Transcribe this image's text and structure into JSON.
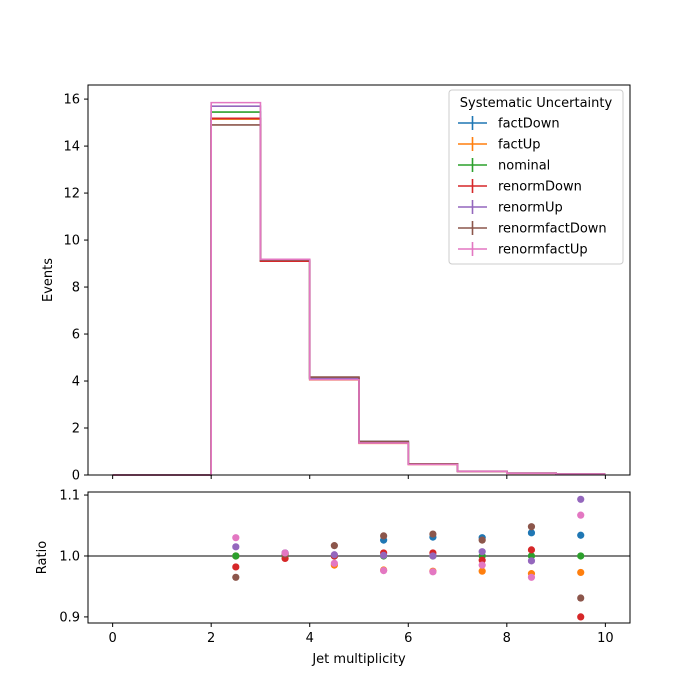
{
  "chart_data": [
    {
      "type": "step",
      "xlabel": "",
      "ylabel": "Events",
      "xlim": [
        -0.5,
        10.5
      ],
      "ylim": [
        0,
        16.6
      ],
      "xticks": [
        0,
        2,
        4,
        6,
        8,
        10
      ],
      "yticks": [
        0,
        2,
        4,
        6,
        8,
        10,
        12,
        14,
        16
      ],
      "bin_edges": [
        0,
        1,
        2,
        3,
        4,
        5,
        6,
        7,
        8,
        9,
        10
      ],
      "legend": {
        "title": "Systematic Uncertainty",
        "placement": "top-right"
      },
      "series": [
        {
          "name": "factDown",
          "color": "#1f77b4",
          "values": [
            0,
            0,
            15.15,
            9.15,
            4.1,
            1.43,
            0.47,
            0.16,
            0.08,
            0.04
          ]
        },
        {
          "name": "factUp",
          "color": "#ff7f0e",
          "values": [
            0,
            0,
            15.15,
            9.15,
            4.05,
            1.35,
            0.45,
            0.15,
            0.07,
            0.038
          ]
        },
        {
          "name": "nominal",
          "color": "#2ca02c",
          "values": [
            0,
            0,
            15.45,
            9.12,
            4.11,
            1.39,
            0.46,
            0.158,
            0.075,
            0.039
          ]
        },
        {
          "name": "renormDown",
          "color": "#d62728",
          "values": [
            0,
            0,
            15.18,
            9.1,
            4.12,
            1.4,
            0.465,
            0.157,
            0.076,
            0.035
          ]
        },
        {
          "name": "renormUp",
          "color": "#9467bd",
          "values": [
            0,
            0,
            15.7,
            9.16,
            4.11,
            1.39,
            0.46,
            0.159,
            0.074,
            0.043
          ]
        },
        {
          "name": "renormfactDown",
          "color": "#8c564b",
          "values": [
            0,
            0,
            14.9,
            9.15,
            4.17,
            1.43,
            0.475,
            0.162,
            0.079,
            0.036
          ]
        },
        {
          "name": "renormfactUp",
          "color": "#e377c2",
          "values": [
            0,
            0,
            15.85,
            9.18,
            4.06,
            1.36,
            0.45,
            0.156,
            0.072,
            0.041
          ]
        }
      ]
    },
    {
      "type": "scatter",
      "xlabel": "Jet multiplicity",
      "ylabel": "Ratio",
      "xlim": [
        -0.5,
        10.5
      ],
      "ylim": [
        0.89,
        1.105
      ],
      "xticks": [
        0,
        2,
        4,
        6,
        8,
        10
      ],
      "yticks": [
        0.9,
        1.0,
        1.1
      ],
      "ytick_labels": [
        "0.9",
        "1.0",
        "1.1"
      ],
      "reference_line": 1.0,
      "x": [
        2.5,
        3.5,
        4.5,
        5.5,
        6.5,
        7.5,
        8.5,
        9.5
      ],
      "series": [
        {
          "name": "factDown",
          "color": "#1f77b4",
          "values": [
            1.0,
            1.005,
            1.0,
            1.026,
            1.031,
            1.03,
            1.038,
            1.034
          ]
        },
        {
          "name": "factUp",
          "color": "#ff7f0e",
          "values": [
            1.0,
            1.003,
            0.985,
            0.977,
            0.975,
            0.975,
            0.971,
            0.973
          ]
        },
        {
          "name": "nominal",
          "color": "#2ca02c",
          "values": [
            1.0,
            1.0,
            1.0,
            1.0,
            1.0,
            1.0,
            1.0,
            1.0
          ]
        },
        {
          "name": "renormDown",
          "color": "#d62728",
          "values": [
            0.982,
            0.996,
            1.0,
            1.005,
            1.005,
            0.993,
            1.01,
            0.9
          ]
        },
        {
          "name": "renormUp",
          "color": "#9467bd",
          "values": [
            1.015,
            1.005,
            1.002,
            1.001,
            1.0,
            1.007,
            0.992,
            1.093
          ]
        },
        {
          "name": "renormfactDown",
          "color": "#8c564b",
          "values": [
            0.965,
            1.003,
            1.017,
            1.033,
            1.036,
            1.026,
            1.048,
            0.931
          ]
        },
        {
          "name": "renormfactUp",
          "color": "#e377c2",
          "values": [
            1.03,
            1.005,
            0.988,
            0.976,
            0.974,
            0.985,
            0.965,
            1.067
          ]
        }
      ]
    }
  ]
}
